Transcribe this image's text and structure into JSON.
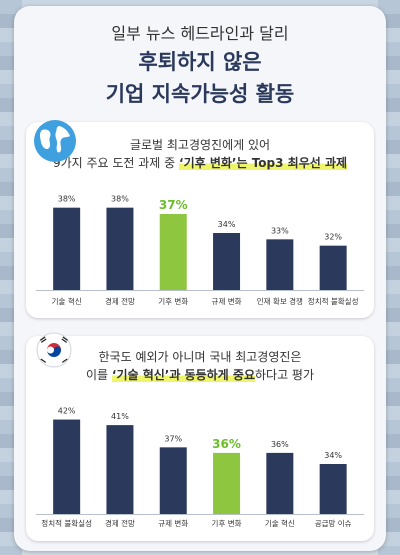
{
  "header": {
    "line1": "일부 뉴스 헤드라인과 달리",
    "line2": "후퇴하지 않은",
    "line3": "기업 지속가능성 활동"
  },
  "colors": {
    "bar": "#2b3a5c",
    "highlight_bar": "#8ec63f",
    "highlight_text": "#6dbd2d",
    "marker": "#eef56a"
  },
  "icons": {
    "card1": "globe-icon",
    "card2": "korea-flag-icon"
  },
  "chart_data": [
    {
      "type": "bar",
      "title_line1": "글로벌 최고경영진에게 있어",
      "title_line2_prefix": "9가지 주요 도전 과제 중 ",
      "title_line2_bold": "‘기후 변화’는 Top3 최우선 과제",
      "categories": [
        "기술 혁신",
        "경제 전망",
        "기후 변화",
        "규제 변화",
        "인재 확보 경쟁",
        "정치적 불확실성"
      ],
      "values": [
        38,
        38,
        37,
        34,
        33,
        32
      ],
      "value_labels": [
        "38%",
        "38%",
        "37%",
        "34%",
        "33%",
        "32%"
      ],
      "highlight_index": 2,
      "xlabel": "",
      "ylabel": "",
      "ylim": [
        25,
        40
      ]
    },
    {
      "type": "bar",
      "title_line1": "한국도 예외가 아니며 국내 최고경영진은",
      "title_line2_prefix": "이를 ",
      "title_line2_bold": "‘기술 혁신’과 동등하게 중요",
      "title_line2_suffix": "하다고 평가",
      "categories": [
        "정치적 불확실성",
        "경제 전망",
        "규제 변화",
        "기후 변화",
        "기술 혁신",
        "공급망 이슈"
      ],
      "values": [
        42,
        41,
        37,
        36,
        36,
        34
      ],
      "value_labels": [
        "42%",
        "41%",
        "37%",
        "36%",
        "36%",
        "34%"
      ],
      "highlight_index": 3,
      "xlabel": "",
      "ylabel": "",
      "ylim": [
        25,
        43
      ]
    }
  ]
}
